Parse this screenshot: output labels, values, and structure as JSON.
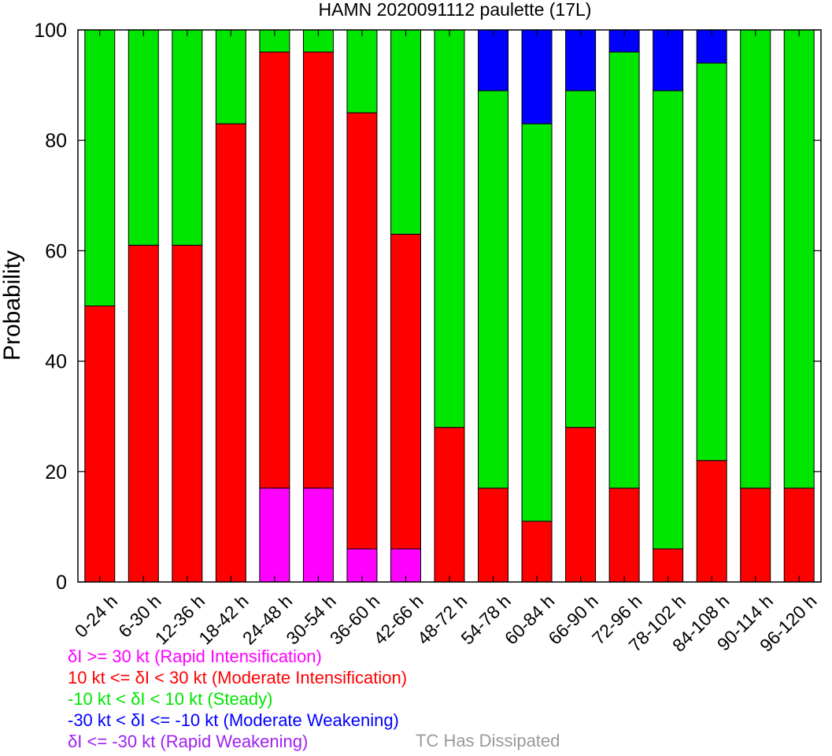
{
  "chart_data": {
    "type": "bar",
    "stacked": true,
    "title": "HAMN 2020091112 paulette (17L)",
    "xlabel": "",
    "ylabel": "Probability",
    "ylim": [
      0,
      100
    ],
    "yticks": [
      "0",
      "20",
      "40",
      "60",
      "80",
      "100"
    ],
    "categories": [
      "0-24 h",
      "6-30 h",
      "12-36 h",
      "18-42 h",
      "24-48 h",
      "30-54 h",
      "36-60 h",
      "42-66 h",
      "48-72 h",
      "54-78 h",
      "60-84 h",
      "66-90 h",
      "72-96 h",
      "78-102 h",
      "84-108 h",
      "90-114 h",
      "96-120 h"
    ],
    "series": [
      {
        "name": "Rapid Intensification",
        "color": "#ff00ff",
        "values": [
          0,
          0,
          0,
          0,
          17,
          17,
          6,
          6,
          0,
          0,
          0,
          0,
          0,
          0,
          0,
          0,
          0
        ]
      },
      {
        "name": "Moderate Intensification",
        "color": "#ff0000",
        "values": [
          50,
          61,
          61,
          83,
          79,
          79,
          79,
          57,
          28,
          17,
          11,
          28,
          17,
          6,
          22,
          17,
          17
        ]
      },
      {
        "name": "Steady",
        "color": "#00e600",
        "values": [
          50,
          39,
          39,
          17,
          4,
          4,
          15,
          37,
          72,
          72,
          72,
          61,
          79,
          83,
          72,
          83,
          83
        ]
      },
      {
        "name": "Moderate Weakening",
        "color": "#0000ff",
        "values": [
          0,
          0,
          0,
          0,
          0,
          0,
          0,
          0,
          0,
          11,
          17,
          11,
          4,
          11,
          6,
          0,
          0
        ]
      },
      {
        "name": "Rapid Weakening",
        "color": "#a020f0",
        "values": [
          0,
          0,
          0,
          0,
          0,
          0,
          0,
          0,
          0,
          0,
          0,
          0,
          0,
          0,
          0,
          0,
          0
        ]
      }
    ]
  },
  "legend": {
    "items": [
      {
        "text": "δI >= 30 kt (Rapid Intensification)",
        "color": "#ff00ff"
      },
      {
        "text": "10 kt <= δI < 30 kt (Moderate Intensification)",
        "color": "#ff0000"
      },
      {
        "text": "-10 kt < δI < 10 kt (Steady)",
        "color": "#00e600"
      },
      {
        "text": "-30 kt < δI <= -10 kt (Moderate Weakening)",
        "color": "#0000ff"
      },
      {
        "text": "δI <= -30 kt (Rapid Weakening)",
        "color": "#a020f0"
      }
    ],
    "dissipated": {
      "text": "TC Has Dissipated",
      "color": "#999999"
    }
  }
}
